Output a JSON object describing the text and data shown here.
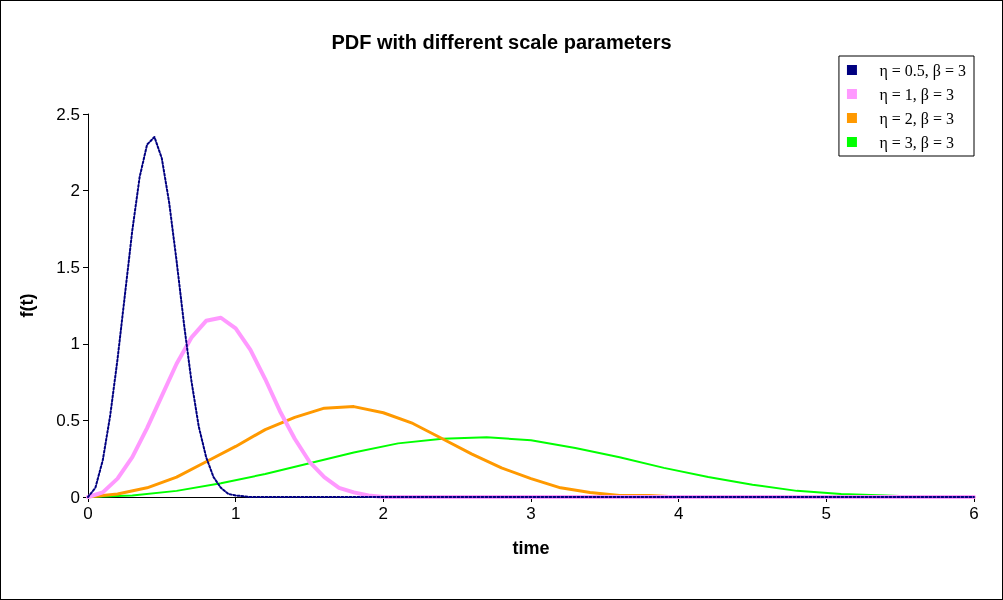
{
  "chart_data": {
    "type": "line",
    "title": "PDF with different scale parameters",
    "xlabel": "time",
    "ylabel": "f(t)",
    "xlim": [
      0,
      6
    ],
    "xticks": [
      0,
      1,
      2,
      3,
      4,
      5,
      6
    ],
    "ylim": [
      0,
      2.5
    ],
    "yticks": [
      0,
      0.5,
      1,
      1.5,
      2,
      2.5
    ],
    "grid": false,
    "legend": "top right",
    "marker": "none",
    "series": [
      {
        "name": "η = 0.5, β = 3",
        "color": "#000080",
        "line_style": "dotted",
        "x": [
          0,
          0.05,
          0.1,
          0.15,
          0.2,
          0.25,
          0.3,
          0.35,
          0.4,
          0.45,
          0.5,
          0.55,
          0.6,
          0.65,
          0.7,
          0.75,
          0.8,
          0.85,
          0.9,
          0.95,
          1,
          1.1,
          6
        ],
        "values": [
          0,
          0.06,
          0.24,
          0.53,
          0.9,
          1.32,
          1.74,
          2.09,
          2.3,
          2.35,
          2.21,
          1.92,
          1.54,
          1.13,
          0.76,
          0.46,
          0.26,
          0.13,
          0.06,
          0.02,
          0.01,
          0,
          0
        ]
      },
      {
        "name": "η = 1, β = 3",
        "color": "#ff99ff",
        "line_style": "solid",
        "x": [
          0,
          0.1,
          0.2,
          0.3,
          0.4,
          0.5,
          0.6,
          0.7,
          0.8,
          0.9,
          1,
          1.1,
          1.2,
          1.3,
          1.4,
          1.5,
          1.6,
          1.7,
          1.8,
          1.9,
          2,
          6
        ],
        "values": [
          0,
          0.03,
          0.12,
          0.26,
          0.45,
          0.66,
          0.87,
          1.04,
          1.15,
          1.17,
          1.1,
          0.96,
          0.77,
          0.56,
          0.38,
          0.23,
          0.13,
          0.06,
          0.03,
          0.01,
          0,
          0
        ]
      },
      {
        "name": "η = 2, β = 3",
        "color": "#ff9900",
        "line_style": "solid",
        "x": [
          0,
          0.2,
          0.4,
          0.6,
          0.8,
          1,
          1.2,
          1.4,
          1.6,
          1.8,
          2,
          2.2,
          2.4,
          2.6,
          2.8,
          3,
          3.2,
          3.4,
          3.6,
          3.8,
          4,
          6
        ],
        "values": [
          0,
          0.02,
          0.06,
          0.13,
          0.23,
          0.33,
          0.44,
          0.52,
          0.58,
          0.59,
          0.55,
          0.48,
          0.38,
          0.28,
          0.19,
          0.12,
          0.06,
          0.03,
          0.01,
          0.01,
          0,
          0
        ]
      },
      {
        "name": "η = 3, β = 3",
        "color": "#00ff00",
        "line_style": "solid",
        "x": [
          0,
          0.3,
          0.6,
          0.9,
          1.2,
          1.5,
          1.8,
          2.1,
          2.4,
          2.7,
          3,
          3.3,
          3.6,
          3.9,
          4.2,
          4.5,
          4.8,
          5.1,
          5.4,
          5.7,
          6
        ],
        "values": [
          0,
          0.01,
          0.04,
          0.09,
          0.15,
          0.22,
          0.29,
          0.35,
          0.38,
          0.39,
          0.37,
          0.32,
          0.26,
          0.19,
          0.13,
          0.08,
          0.04,
          0.02,
          0.01,
          0,
          0
        ]
      }
    ]
  }
}
